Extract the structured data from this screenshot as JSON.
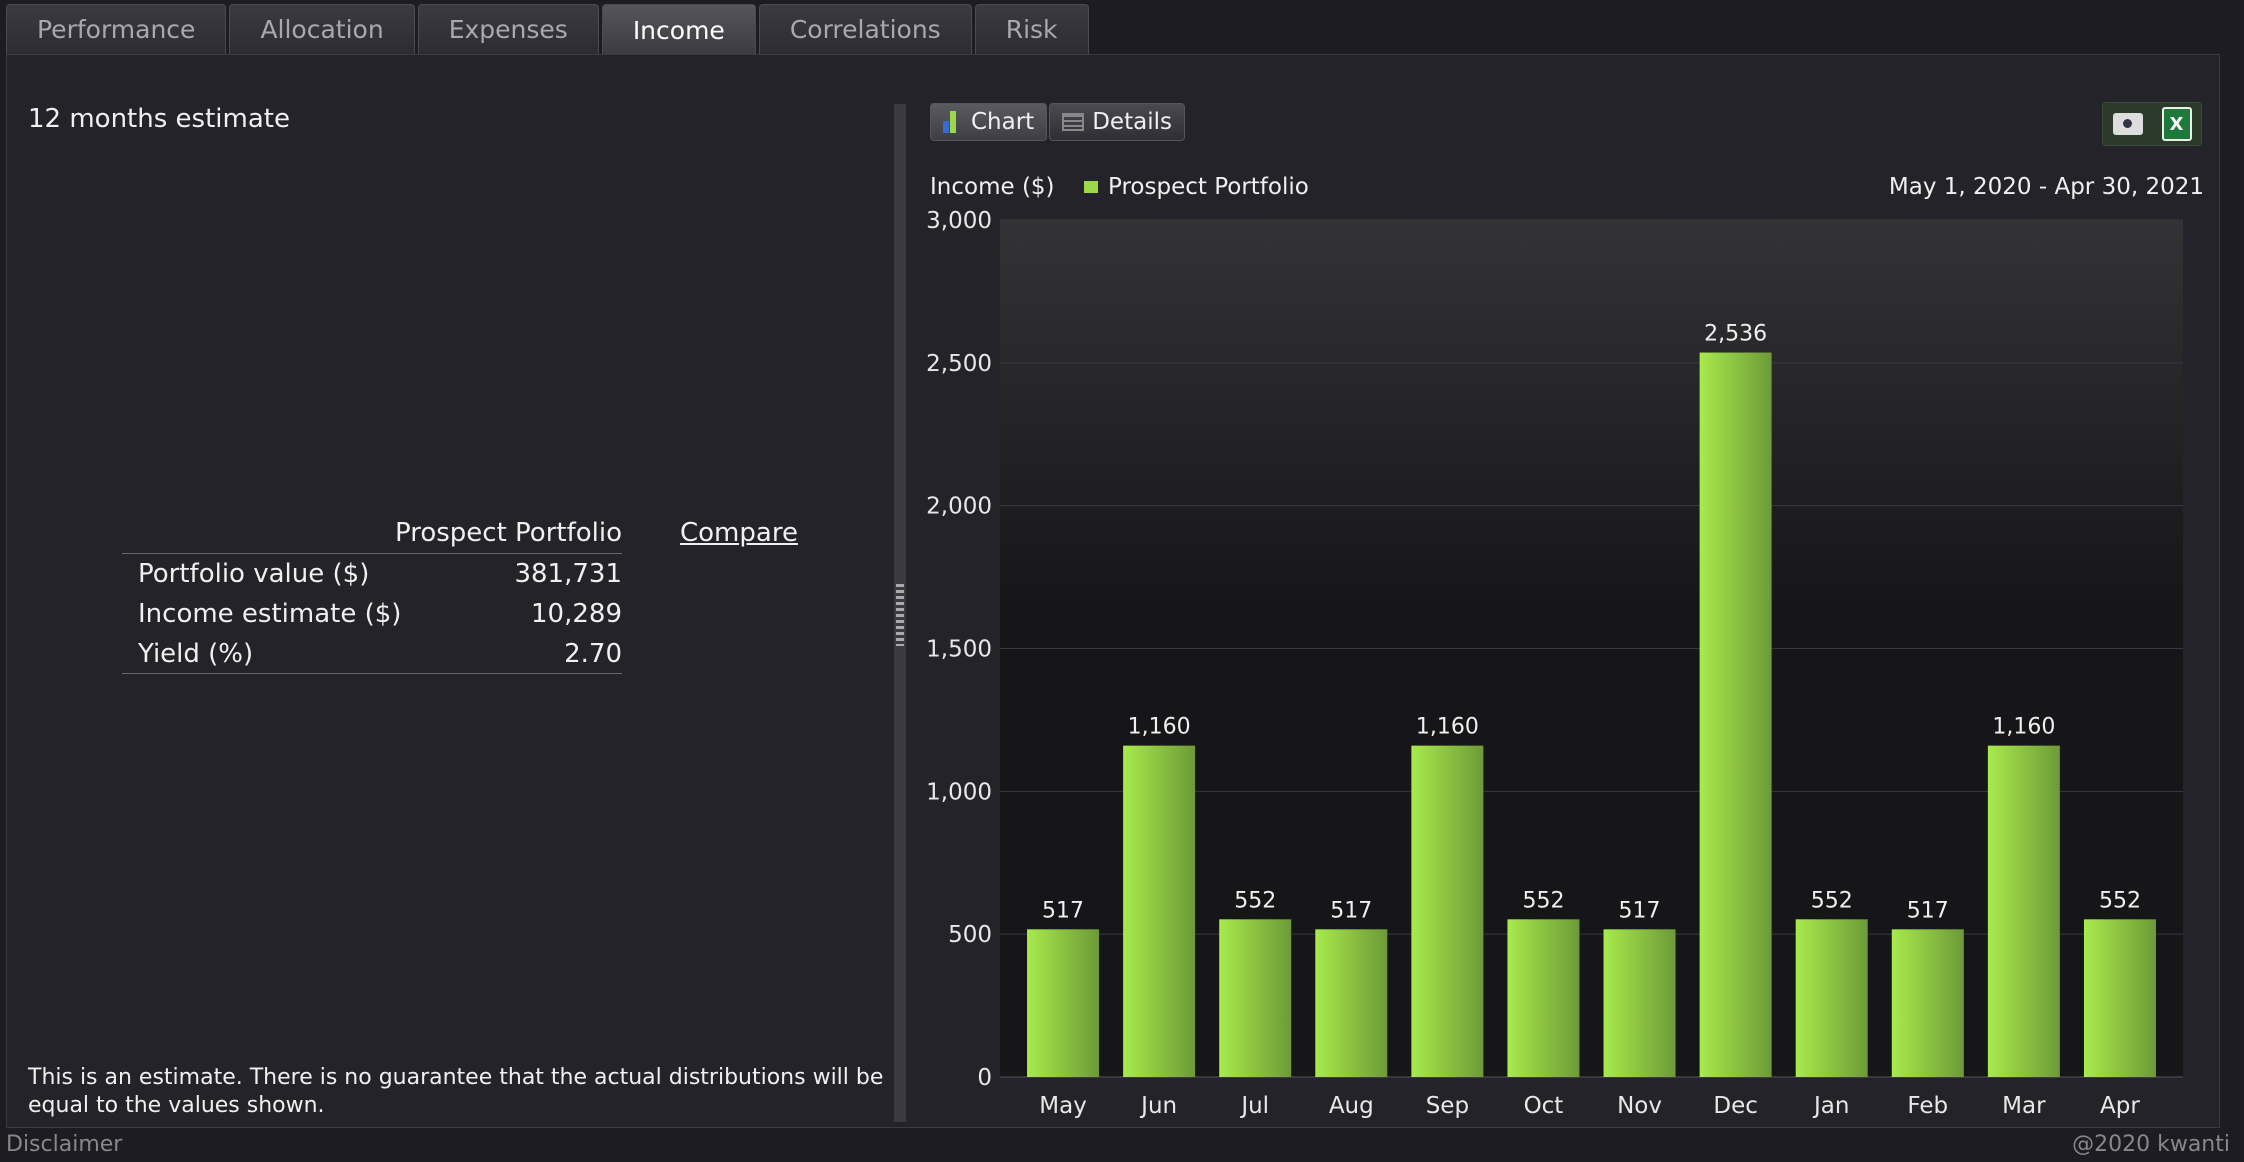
{
  "tabs": [
    {
      "label": "Performance"
    },
    {
      "label": "Allocation"
    },
    {
      "label": "Expenses"
    },
    {
      "label": "Income",
      "active": true
    },
    {
      "label": "Correlations"
    },
    {
      "label": "Risk"
    }
  ],
  "left": {
    "title": "12 months estimate",
    "summary": {
      "column_header": "Prospect Portfolio",
      "compare_label": "Compare",
      "rows": [
        {
          "label": "Portfolio value ($)",
          "value": "381,731"
        },
        {
          "label": "Income estimate ($)",
          "value": "10,289"
        },
        {
          "label": "Yield (%)",
          "value": "2.70"
        }
      ]
    },
    "disclaimer": "This is an estimate. There is no guarantee that the actual distributions will be equal to the values shown."
  },
  "right": {
    "view_buttons": {
      "chart": "Chart",
      "details": "Details"
    },
    "export_icons": [
      "camera-icon",
      "excel-icon"
    ],
    "excel_glyph": "X",
    "date_range": "May 1, 2020 - Apr 30, 2021"
  },
  "chart_data": {
    "type": "bar",
    "ylabel": "Income ($)",
    "categories": [
      "May",
      "Jun",
      "Jul",
      "Aug",
      "Sep",
      "Oct",
      "Nov",
      "Dec",
      "Jan",
      "Feb",
      "Mar",
      "Apr"
    ],
    "series": [
      {
        "name": "Prospect Portfolio",
        "values": [
          517,
          1160,
          552,
          517,
          1160,
          552,
          517,
          2536,
          552,
          517,
          1160,
          552
        ]
      }
    ],
    "data_labels": [
      "517",
      "1,160",
      "552",
      "517",
      "1,160",
      "552",
      "517",
      "2,536",
      "552",
      "517",
      "1,160",
      "552"
    ],
    "ylim": [
      0,
      3000
    ],
    "yticks": [
      0,
      500,
      1000,
      1500,
      2000,
      2500,
      3000
    ],
    "ytick_labels": [
      "0",
      "500",
      "1,000",
      "1,500",
      "2,000",
      "2,500",
      "3,000"
    ],
    "grid": true,
    "legend": "top-left",
    "colors": {
      "bar": "#9bd84a",
      "bar_dark": "#6e9a36"
    }
  },
  "footer": {
    "disclaimer_link": "Disclaimer",
    "copyright": "@2020 kwanti"
  }
}
